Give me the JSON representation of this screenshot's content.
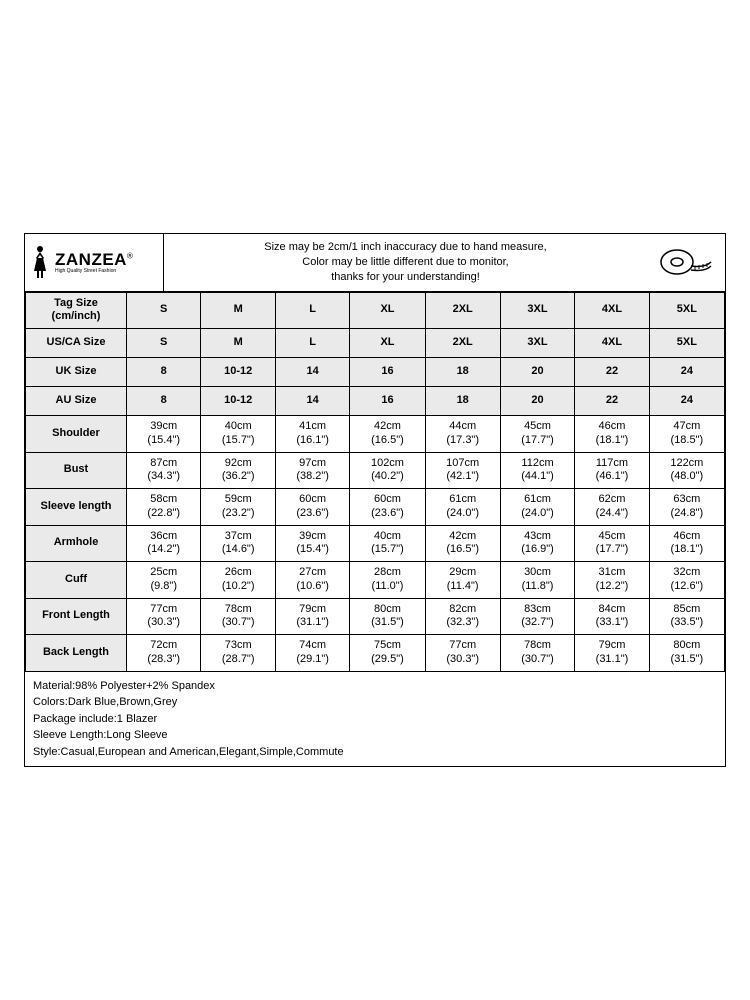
{
  "brand": {
    "name": "ZANZEA",
    "reg": "®",
    "tagline": "High Quality Street Fashion"
  },
  "notice": {
    "l1": "Size may be 2cm/1 inch inaccuracy due to hand measure,",
    "l2": "Color may be little different due to monitor,",
    "l3": "thanks for your understanding!"
  },
  "headers": [
    "Tag Size (cm/inch)",
    "S",
    "M",
    "L",
    "XL",
    "2XL",
    "3XL",
    "4XL",
    "5XL"
  ],
  "single_rows": [
    {
      "label": "US/CA Size",
      "vals": [
        "S",
        "M",
        "L",
        "XL",
        "2XL",
        "3XL",
        "4XL",
        "5XL"
      ]
    },
    {
      "label": "UK Size",
      "vals": [
        "8",
        "10-12",
        "14",
        "16",
        "18",
        "20",
        "22",
        "24"
      ]
    },
    {
      "label": "AU Size",
      "vals": [
        "8",
        "10-12",
        "14",
        "16",
        "18",
        "20",
        "22",
        "24"
      ]
    }
  ],
  "dual_rows": [
    {
      "label": "Shoulder",
      "cm": [
        "39cm",
        "40cm",
        "41cm",
        "42cm",
        "44cm",
        "45cm",
        "46cm",
        "47cm"
      ],
      "in": [
        "(15.4\")",
        "(15.7\")",
        "(16.1\")",
        "(16.5\")",
        "(17.3\")",
        "(17.7\")",
        "(18.1\")",
        "(18.5\")"
      ]
    },
    {
      "label": "Bust",
      "cm": [
        "87cm",
        "92cm",
        "97cm",
        "102cm",
        "107cm",
        "112cm",
        "117cm",
        "122cm"
      ],
      "in": [
        "(34.3\")",
        "(36.2\")",
        "(38.2\")",
        "(40.2\")",
        "(42.1\")",
        "(44.1\")",
        "(46.1\")",
        "(48.0\")"
      ]
    },
    {
      "label": "Sleeve length",
      "cm": [
        "58cm",
        "59cm",
        "60cm",
        "60cm",
        "61cm",
        "61cm",
        "62cm",
        "63cm"
      ],
      "in": [
        "(22.8\")",
        "(23.2\")",
        "(23.6\")",
        "(23.6\")",
        "(24.0\")",
        "(24.0\")",
        "(24.4\")",
        "(24.8\")"
      ]
    },
    {
      "label": "Armhole",
      "cm": [
        "36cm",
        "37cm",
        "39cm",
        "40cm",
        "42cm",
        "43cm",
        "45cm",
        "46cm"
      ],
      "in": [
        "(14.2\")",
        "(14.6\")",
        "(15.4\")",
        "(15.7\")",
        "(16.5\")",
        "(16.9\")",
        "(17.7\")",
        "(18.1\")"
      ]
    },
    {
      "label": "Cuff",
      "cm": [
        "25cm",
        "26cm",
        "27cm",
        "28cm",
        "29cm",
        "30cm",
        "31cm",
        "32cm"
      ],
      "in": [
        "(9.8\")",
        "(10.2\")",
        "(10.6\")",
        "(11.0\")",
        "(11.4\")",
        "(11.8\")",
        "(12.2\")",
        "(12.6\")"
      ]
    },
    {
      "label": "Front Length",
      "cm": [
        "77cm",
        "78cm",
        "79cm",
        "80cm",
        "82cm",
        "83cm",
        "84cm",
        "85cm"
      ],
      "in": [
        "(30.3\")",
        "(30.7\")",
        "(31.1\")",
        "(31.5\")",
        "(32.3\")",
        "(32.7\")",
        "(33.1\")",
        "(33.5\")"
      ]
    },
    {
      "label": "Back Length",
      "cm": [
        "72cm",
        "73cm",
        "74cm",
        "75cm",
        "77cm",
        "78cm",
        "79cm",
        "80cm"
      ],
      "in": [
        "(28.3\")",
        "(28.7\")",
        "(29.1\")",
        "(29.5\")",
        "(30.3\")",
        "(30.7\")",
        "(31.1\")",
        "(31.5\")"
      ]
    }
  ],
  "info": {
    "l1": "Material:98% Polyester+2% Spandex",
    "l2": "Colors:Dark Blue,Brown,Grey",
    "l3": "Package include:1 Blazer",
    "l4": "Sleeve Length:Long Sleeve",
    "l5": "Style:Casual,European and American,Elegant,Simple,Commute"
  },
  "style": {
    "border_color": "#000000",
    "header_bg": "#eaeaea",
    "font_size_pt": 11
  }
}
